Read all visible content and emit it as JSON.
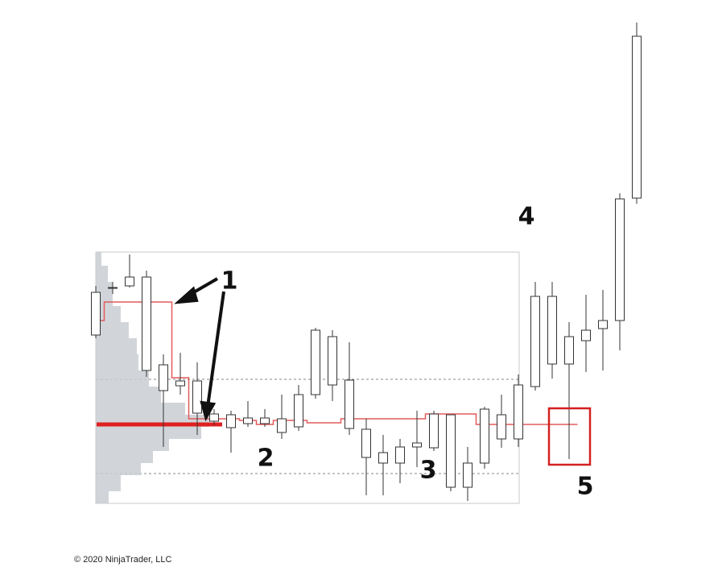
{
  "chart_data": {
    "type": "candlestick",
    "ylim": [
      7,
      68
    ],
    "color": "#ffffff",
    "line_color": "#e35b5b",
    "open": [
      28.4,
      34.2,
      34.5,
      24.0,
      21.5,
      22.1,
      18.7,
      17.7,
      16.9,
      17.4,
      17.4,
      16.3,
      17.0,
      21.0,
      22.2,
      16.8,
      13.2,
      12.5,
      12.5,
      14.5,
      14.4,
      9.5,
      9.5,
      12.5,
      15.5,
      15.5,
      22.0,
      24.8,
      24.8,
      27.7,
      29.2,
      30.2,
      45.4
    ],
    "close": [
      33.7,
      34.3,
      35.6,
      35.6,
      24.7,
      22.7,
      22.7,
      18.6,
      18.5,
      18.1,
      18.1,
      18.0,
      21.0,
      29.0,
      28.2,
      22.8,
      16.7,
      13.8,
      14.5,
      15.0,
      18.6,
      18.5,
      12.5,
      19.2,
      18.5,
      22.2,
      33.2,
      33.2,
      28.2,
      29.0,
      30.2,
      45.3,
      65.5
    ],
    "high": [
      34.5,
      35.0,
      38.4,
      36.4,
      26.0,
      26.2,
      25.0,
      19.2,
      19.0,
      20.2,
      19.2,
      21.0,
      22.2,
      29.3,
      29.0,
      27.5,
      18.0,
      16.0,
      15.5,
      19.0,
      19.0,
      18.5,
      14.5,
      19.5,
      21.0,
      23.5,
      35.0,
      35.0,
      30.0,
      33.4,
      34.0,
      46.0,
      67.2
    ],
    "low": [
      28.0,
      33.5,
      34.3,
      23.2,
      14.5,
      21.0,
      16.0,
      17.2,
      13.8,
      17.0,
      17.0,
      15.5,
      16.5,
      20.5,
      20.2,
      16.0,
      8.5,
      8.5,
      10.0,
      12.0,
      14.0,
      9.0,
      7.8,
      11.8,
      14.4,
      14.5,
      21.5,
      23.0,
      13.0,
      23.8,
      24.0,
      26.5,
      44.7
    ],
    "poc": [
      30.2,
      32.5,
      32.5,
      32.5,
      32.5,
      23.1,
      18.0,
      18.0,
      18.0,
      17.8,
      17.3,
      17.8,
      17.8,
      17.5,
      17.5,
      18.0,
      18.0,
      18.0,
      18.0,
      18.0,
      18.6,
      18.6,
      18.6,
      17.3,
      17.3,
      17.3,
      17.3,
      17.3,
      17.3
    ],
    "annotations": [
      "1",
      "2",
      "3",
      "4",
      "5"
    ],
    "footer": "© 2020 NinjaTrader, LLC"
  }
}
